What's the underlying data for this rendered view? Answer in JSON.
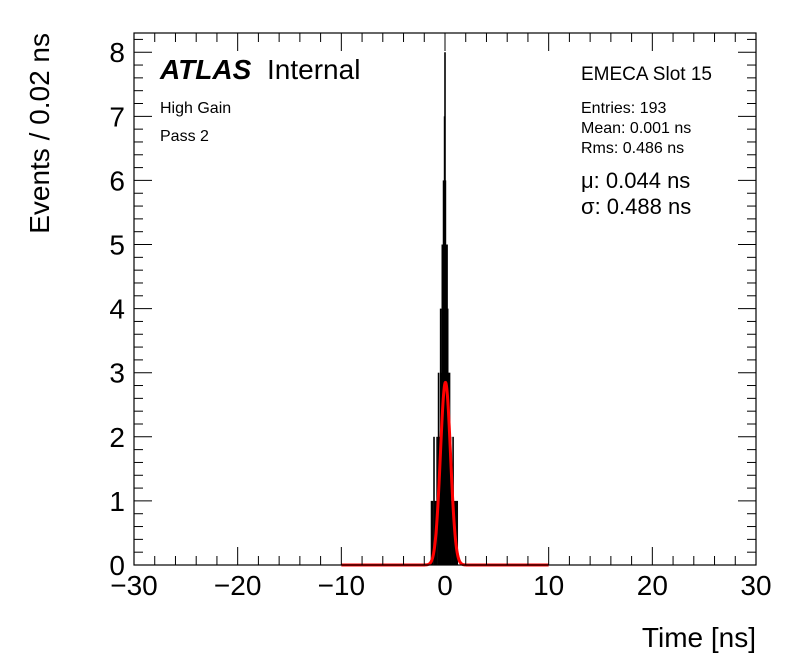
{
  "chart_data": {
    "type": "histogram",
    "xlabel": "Time [ns]",
    "ylabel": "Events / 0.02 ns",
    "xlim": [
      -30,
      30
    ],
    "ylim": [
      0,
      8.3
    ],
    "x_ticks": [
      -30,
      -20,
      -10,
      0,
      10,
      20,
      30
    ],
    "x_tick_labels": [
      "−30",
      "−20",
      "−10",
      "0",
      "10",
      "20",
      "30"
    ],
    "y_ticks": [
      0,
      1,
      2,
      3,
      4,
      5,
      6,
      7,
      8
    ],
    "y_tick_labels": [
      "0",
      "1",
      "2",
      "3",
      "4",
      "5",
      "6",
      "7",
      "8"
    ],
    "grid": false,
    "bin_width": 0.02,
    "histogram": {
      "x": [
        -1.3,
        -1.2,
        -1.06,
        -0.98,
        -0.86,
        -0.76,
        -0.62,
        -0.52,
        -0.42,
        -0.34,
        -0.26,
        -0.2,
        -0.14,
        -0.08,
        -0.04,
        0.0,
        0.04,
        0.08,
        0.14,
        0.2,
        0.26,
        0.34,
        0.44,
        0.54,
        0.66,
        0.78,
        0.9,
        1.04,
        1.18
      ],
      "counts": [
        1,
        1,
        2,
        1,
        1,
        2,
        3,
        2,
        4,
        3,
        5,
        4,
        6,
        5,
        7,
        8,
        6,
        5,
        4,
        5,
        4,
        3,
        3,
        2,
        1,
        2,
        1,
        1,
        1
      ],
      "color": "#000000"
    },
    "fit": {
      "type": "gaussian",
      "mu": 0.044,
      "sigma": 0.488,
      "amplitude": 2.85,
      "draw_range": [
        -10,
        10
      ],
      "color": "#ff0000"
    }
  },
  "labels": {
    "experiment": "ATLAS",
    "status": "Internal",
    "gain": "High Gain",
    "pass": "Pass 2",
    "channel": "EMECA Slot 15",
    "entries": "Entries: 193",
    "mean": "Mean: 0.001 ns",
    "rms": "Rms: 0.486 ns",
    "fit_mu": "μ: 0.044 ns",
    "fit_sigma": "σ: 0.488 ns"
  }
}
